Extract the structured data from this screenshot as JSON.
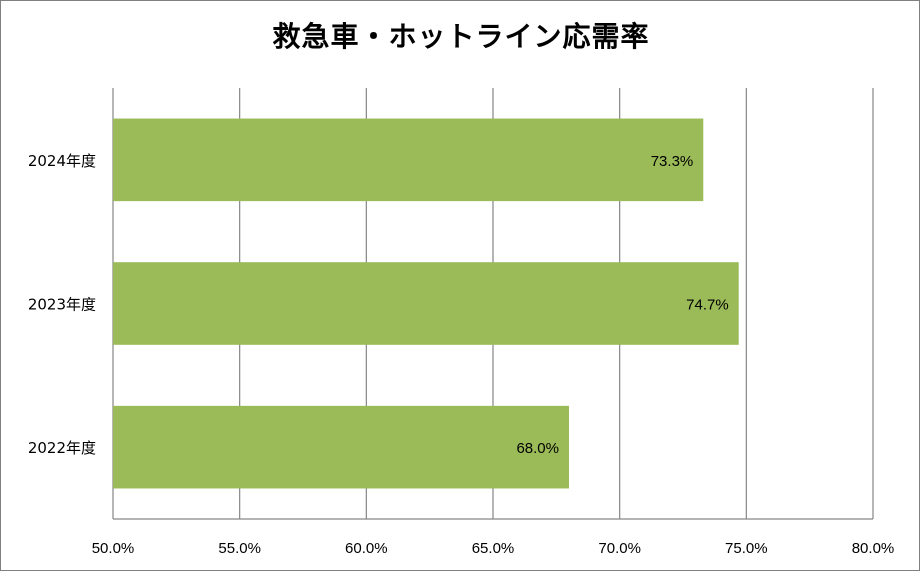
{
  "chart_data": {
    "type": "bar",
    "orientation": "horizontal",
    "title": "救急車・ホットライン応需率",
    "xlabel": "",
    "ylabel": "",
    "categories": [
      "2024年度",
      "2023年度",
      "2022年度"
    ],
    "values": [
      73.3,
      74.7,
      68.0
    ],
    "data_labels": [
      "73.3%",
      "74.7%",
      "68.0%"
    ],
    "xlim": [
      50,
      80
    ],
    "x_ticks": [
      50,
      55,
      60,
      65,
      70,
      75,
      80
    ],
    "x_tick_labels": [
      "50.0%",
      "55.0%",
      "60.0%",
      "65.0%",
      "70.0%",
      "75.0%",
      "80.0%"
    ],
    "grid": true,
    "legend": "none",
    "bar_color": "#9bbb59"
  }
}
